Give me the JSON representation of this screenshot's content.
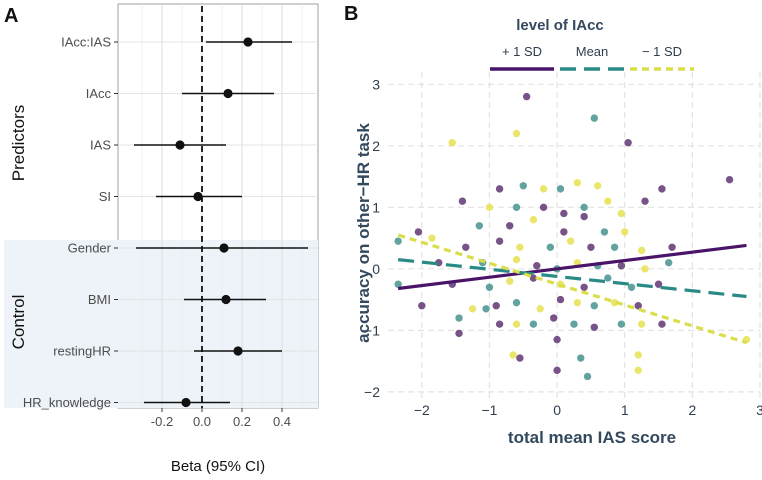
{
  "chart_data": [
    {
      "panel": "A",
      "type": "forest",
      "xlabel": "Beta (95% CI)",
      "xlim": [
        -0.42,
        0.58
      ],
      "xticks": [
        -0.2,
        0.0,
        0.2,
        0.4
      ],
      "xtick_labels": [
        "-0.2",
        "0.0",
        "0.2",
        "0.4"
      ],
      "groups": [
        {
          "name": "Predictors",
          "shaded": false
        },
        {
          "name": "Control",
          "shaded": true
        }
      ],
      "predictors": [
        {
          "label": "IAcc:IAS",
          "group": "Predictors",
          "beta": 0.23,
          "lower": 0.02,
          "upper": 0.45
        },
        {
          "label": "IAcc",
          "group": "Predictors",
          "beta": 0.13,
          "lower": -0.1,
          "upper": 0.36
        },
        {
          "label": "IAS",
          "group": "Predictors",
          "beta": -0.11,
          "lower": -0.34,
          "upper": 0.12
        },
        {
          "label": "SI",
          "group": "Predictors",
          "beta": -0.02,
          "lower": -0.23,
          "upper": 0.2
        },
        {
          "label": "Gender",
          "group": "Control",
          "beta": 0.11,
          "lower": -0.33,
          "upper": 0.53
        },
        {
          "label": "BMI",
          "group": "Control",
          "beta": 0.12,
          "lower": -0.09,
          "upper": 0.32
        },
        {
          "label": "restingHR",
          "group": "Control",
          "beta": 0.18,
          "lower": -0.04,
          "upper": 0.4
        },
        {
          "label": "HR_knowledge",
          "group": "Control",
          "beta": -0.08,
          "lower": -0.29,
          "upper": 0.14
        }
      ]
    },
    {
      "panel": "B",
      "type": "scatter",
      "xlabel": "total mean IAS score",
      "ylabel": "accuracy on other−HR task",
      "xlim": [
        -2.5,
        3.0
      ],
      "ylim": [
        -2.1,
        3.2
      ],
      "xticks": [
        -2,
        -1,
        0,
        1,
        2,
        3
      ],
      "xtick_labels": [
        "−2",
        "−1",
        "0",
        "1",
        "2",
        "3"
      ],
      "yticks": [
        -2,
        -1,
        0,
        1,
        2,
        3
      ],
      "ytick_labels": [
        "−2",
        "−1",
        "0",
        "1",
        "2",
        "3"
      ],
      "legend": {
        "title": "level of IAcc",
        "position": "top",
        "entries": [
          {
            "label": "+ 1 SD",
            "color": "#4a1468",
            "dash": "solid"
          },
          {
            "label": "Mean",
            "color": "#2a8a85",
            "dash": "dashed"
          },
          {
            "label": "− 1 SD",
            "color": "#d9de4a",
            "dash": "dotted"
          }
        ]
      },
      "lines": [
        {
          "name": "+ 1 SD",
          "x": [
            -2.35,
            2.8
          ],
          "y": [
            -0.32,
            0.38
          ]
        },
        {
          "name": "Mean",
          "x": [
            -2.35,
            2.8
          ],
          "y": [
            0.15,
            -0.45
          ]
        },
        {
          "name": "− 1 SD",
          "x": [
            -2.35,
            2.8
          ],
          "y": [
            0.55,
            -1.2
          ]
        }
      ],
      "point_colors": {
        "purple": "#5a2d6e",
        "teal": "#3f8f8a",
        "yellow": "#e5e04a"
      },
      "points": [
        {
          "x": -0.45,
          "y": 2.8,
          "c": "purple"
        },
        {
          "x": -0.6,
          "y": 2.2,
          "c": "yellow"
        },
        {
          "x": 0.55,
          "y": 2.45,
          "c": "teal"
        },
        {
          "x": 1.05,
          "y": 2.05,
          "c": "purple"
        },
        {
          "x": -1.55,
          "y": 2.05,
          "c": "yellow"
        },
        {
          "x": 2.55,
          "y": 1.45,
          "c": "purple"
        },
        {
          "x": -0.85,
          "y": 1.3,
          "c": "purple"
        },
        {
          "x": -0.5,
          "y": 1.35,
          "c": "teal"
        },
        {
          "x": -0.2,
          "y": 1.3,
          "c": "yellow"
        },
        {
          "x": 0.05,
          "y": 1.3,
          "c": "teal"
        },
        {
          "x": 0.3,
          "y": 1.4,
          "c": "yellow"
        },
        {
          "x": 0.6,
          "y": 1.35,
          "c": "yellow"
        },
        {
          "x": 1.55,
          "y": 1.3,
          "c": "purple"
        },
        {
          "x": -1.4,
          "y": 1.1,
          "c": "purple"
        },
        {
          "x": -1.0,
          "y": 1.0,
          "c": "yellow"
        },
        {
          "x": -0.6,
          "y": 1.0,
          "c": "teal"
        },
        {
          "x": -0.2,
          "y": 1.0,
          "c": "purple"
        },
        {
          "x": 0.1,
          "y": 0.9,
          "c": "purple"
        },
        {
          "x": 0.4,
          "y": 1.0,
          "c": "teal"
        },
        {
          "x": 0.75,
          "y": 1.1,
          "c": "yellow"
        },
        {
          "x": 0.95,
          "y": 0.9,
          "c": "yellow"
        },
        {
          "x": 1.3,
          "y": 1.1,
          "c": "purple"
        },
        {
          "x": -2.05,
          "y": 0.6,
          "c": "purple"
        },
        {
          "x": -1.15,
          "y": 0.7,
          "c": "teal"
        },
        {
          "x": -0.7,
          "y": 0.7,
          "c": "purple"
        },
        {
          "x": -0.35,
          "y": 0.8,
          "c": "yellow"
        },
        {
          "x": 0.1,
          "y": 0.6,
          "c": "purple"
        },
        {
          "x": 0.4,
          "y": 0.85,
          "c": "purple"
        },
        {
          "x": 0.7,
          "y": 0.6,
          "c": "teal"
        },
        {
          "x": 1.0,
          "y": 0.6,
          "c": "yellow"
        },
        {
          "x": -2.35,
          "y": 0.45,
          "c": "teal"
        },
        {
          "x": -1.85,
          "y": 0.5,
          "c": "yellow"
        },
        {
          "x": -1.35,
          "y": 0.35,
          "c": "purple"
        },
        {
          "x": -0.85,
          "y": 0.45,
          "c": "purple"
        },
        {
          "x": -0.55,
          "y": 0.35,
          "c": "yellow"
        },
        {
          "x": -0.1,
          "y": 0.35,
          "c": "teal"
        },
        {
          "x": 0.2,
          "y": 0.45,
          "c": "yellow"
        },
        {
          "x": 0.5,
          "y": 0.35,
          "c": "purple"
        },
        {
          "x": 0.85,
          "y": 0.35,
          "c": "teal"
        },
        {
          "x": 1.25,
          "y": 0.3,
          "c": "yellow"
        },
        {
          "x": 1.7,
          "y": 0.35,
          "c": "purple"
        },
        {
          "x": -1.75,
          "y": 0.1,
          "c": "purple"
        },
        {
          "x": -1.1,
          "y": 0.1,
          "c": "teal"
        },
        {
          "x": -0.6,
          "y": 0.15,
          "c": "yellow"
        },
        {
          "x": -0.3,
          "y": 0.05,
          "c": "purple"
        },
        {
          "x": 0.0,
          "y": 0.0,
          "c": "teal"
        },
        {
          "x": 0.3,
          "y": 0.1,
          "c": "yellow"
        },
        {
          "x": 0.6,
          "y": 0.05,
          "c": "teal"
        },
        {
          "x": 0.95,
          "y": 0.05,
          "c": "purple"
        },
        {
          "x": 1.3,
          "y": 0.0,
          "c": "yellow"
        },
        {
          "x": 1.65,
          "y": 0.1,
          "c": "teal"
        },
        {
          "x": -2.35,
          "y": -0.25,
          "c": "teal"
        },
        {
          "x": -1.55,
          "y": -0.25,
          "c": "purple"
        },
        {
          "x": -1.0,
          "y": -0.3,
          "c": "teal"
        },
        {
          "x": -0.7,
          "y": -0.2,
          "c": "yellow"
        },
        {
          "x": -0.35,
          "y": -0.15,
          "c": "purple"
        },
        {
          "x": 0.05,
          "y": -0.25,
          "c": "yellow"
        },
        {
          "x": 0.4,
          "y": -0.3,
          "c": "purple"
        },
        {
          "x": 0.75,
          "y": -0.15,
          "c": "teal"
        },
        {
          "x": 1.1,
          "y": -0.3,
          "c": "teal"
        },
        {
          "x": 1.5,
          "y": -0.25,
          "c": "purple"
        },
        {
          "x": -2.0,
          "y": -0.6,
          "c": "purple"
        },
        {
          "x": -1.25,
          "y": -0.65,
          "c": "yellow"
        },
        {
          "x": -1.05,
          "y": -0.65,
          "c": "teal"
        },
        {
          "x": -0.9,
          "y": -0.6,
          "c": "purple"
        },
        {
          "x": -0.6,
          "y": -0.55,
          "c": "teal"
        },
        {
          "x": -0.25,
          "y": -0.65,
          "c": "yellow"
        },
        {
          "x": 0.05,
          "y": -0.5,
          "c": "purple"
        },
        {
          "x": 0.3,
          "y": -0.55,
          "c": "yellow"
        },
        {
          "x": 0.55,
          "y": -0.6,
          "c": "teal"
        },
        {
          "x": 0.85,
          "y": -0.55,
          "c": "yellow"
        },
        {
          "x": 1.2,
          "y": -0.6,
          "c": "purple"
        },
        {
          "x": -1.45,
          "y": -0.8,
          "c": "teal"
        },
        {
          "x": -0.85,
          "y": -0.9,
          "c": "purple"
        },
        {
          "x": -0.6,
          "y": -0.9,
          "c": "yellow"
        },
        {
          "x": -0.35,
          "y": -0.9,
          "c": "teal"
        },
        {
          "x": -0.05,
          "y": -0.8,
          "c": "purple"
        },
        {
          "x": 0.25,
          "y": -0.9,
          "c": "teal"
        },
        {
          "x": 0.55,
          "y": -0.95,
          "c": "purple"
        },
        {
          "x": 0.95,
          "y": -0.9,
          "c": "teal"
        },
        {
          "x": 1.25,
          "y": -0.9,
          "c": "yellow"
        },
        {
          "x": 1.55,
          "y": -0.9,
          "c": "purple"
        },
        {
          "x": -1.45,
          "y": -1.05,
          "c": "purple"
        },
        {
          "x": 0.0,
          "y": -1.15,
          "c": "purple"
        },
        {
          "x": 2.8,
          "y": -1.15,
          "c": "yellow"
        },
        {
          "x": -0.65,
          "y": -1.4,
          "c": "yellow"
        },
        {
          "x": -0.55,
          "y": -1.45,
          "c": "purple"
        },
        {
          "x": 0.35,
          "y": -1.45,
          "c": "teal"
        },
        {
          "x": 1.2,
          "y": -1.4,
          "c": "yellow"
        },
        {
          "x": 0.0,
          "y": -1.65,
          "c": "purple"
        },
        {
          "x": 0.45,
          "y": -1.75,
          "c": "teal"
        },
        {
          "x": 1.2,
          "y": -1.65,
          "c": "yellow"
        }
      ]
    }
  ]
}
